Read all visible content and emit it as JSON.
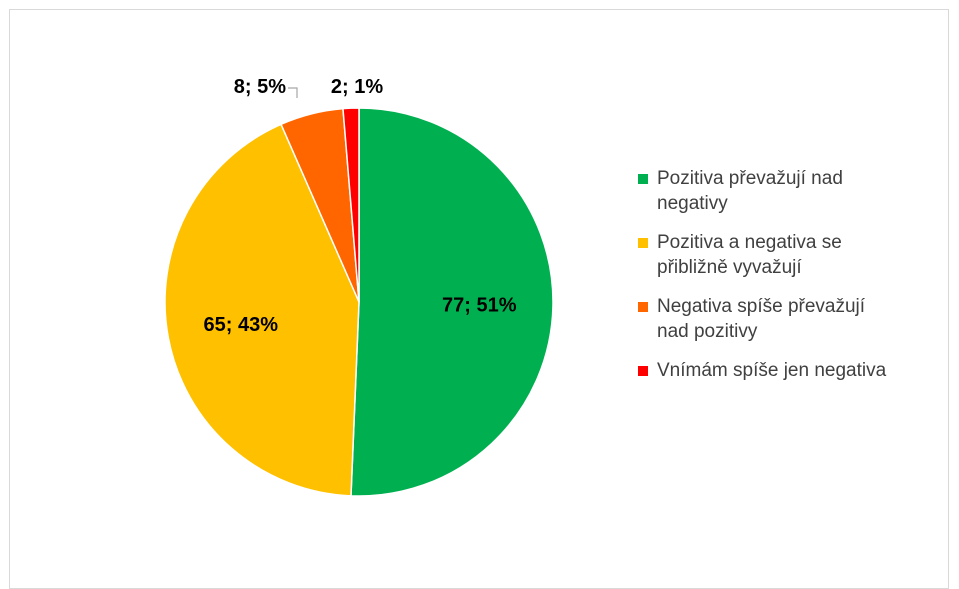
{
  "chart_data": {
    "type": "pie",
    "title": "",
    "start_angle_deg": 0,
    "direction": "clockwise",
    "slices": [
      {
        "label": "Pozitiva převažují nad negativy",
        "value": 77,
        "percent": "51%",
        "data_label": "77; 51%",
        "color": "#00b050"
      },
      {
        "label": "Pozitiva a negativa se přibližně vyvažují",
        "value": 65,
        "percent": "43%",
        "data_label": "65; 43%",
        "color": "#ffc000"
      },
      {
        "label": "Negativa spíše převažují nad pozitivy",
        "value": 8,
        "percent": "5%",
        "data_label": "8; 5%",
        "color": "#ff6600"
      },
      {
        "label": "Vnímám spíše jen negativa",
        "value": 2,
        "percent": "1%",
        "data_label": "2; 1%",
        "color": "#ff0000"
      }
    ],
    "legend_position": "right"
  },
  "legend": {
    "items": [
      {
        "lines": [
          "Pozitiva převažují nad",
          "negativy"
        ],
        "color": "#00b050"
      },
      {
        "lines": [
          "Pozitiva a negativa se",
          "přibližně vyvažují"
        ],
        "color": "#ffc000"
      },
      {
        "lines": [
          "Negativa spíše převažují",
          "nad pozitivy"
        ],
        "color": "#ff6600"
      },
      {
        "lines": [
          "Vnímám spíše jen negativa"
        ],
        "color": "#ff0000"
      }
    ]
  }
}
